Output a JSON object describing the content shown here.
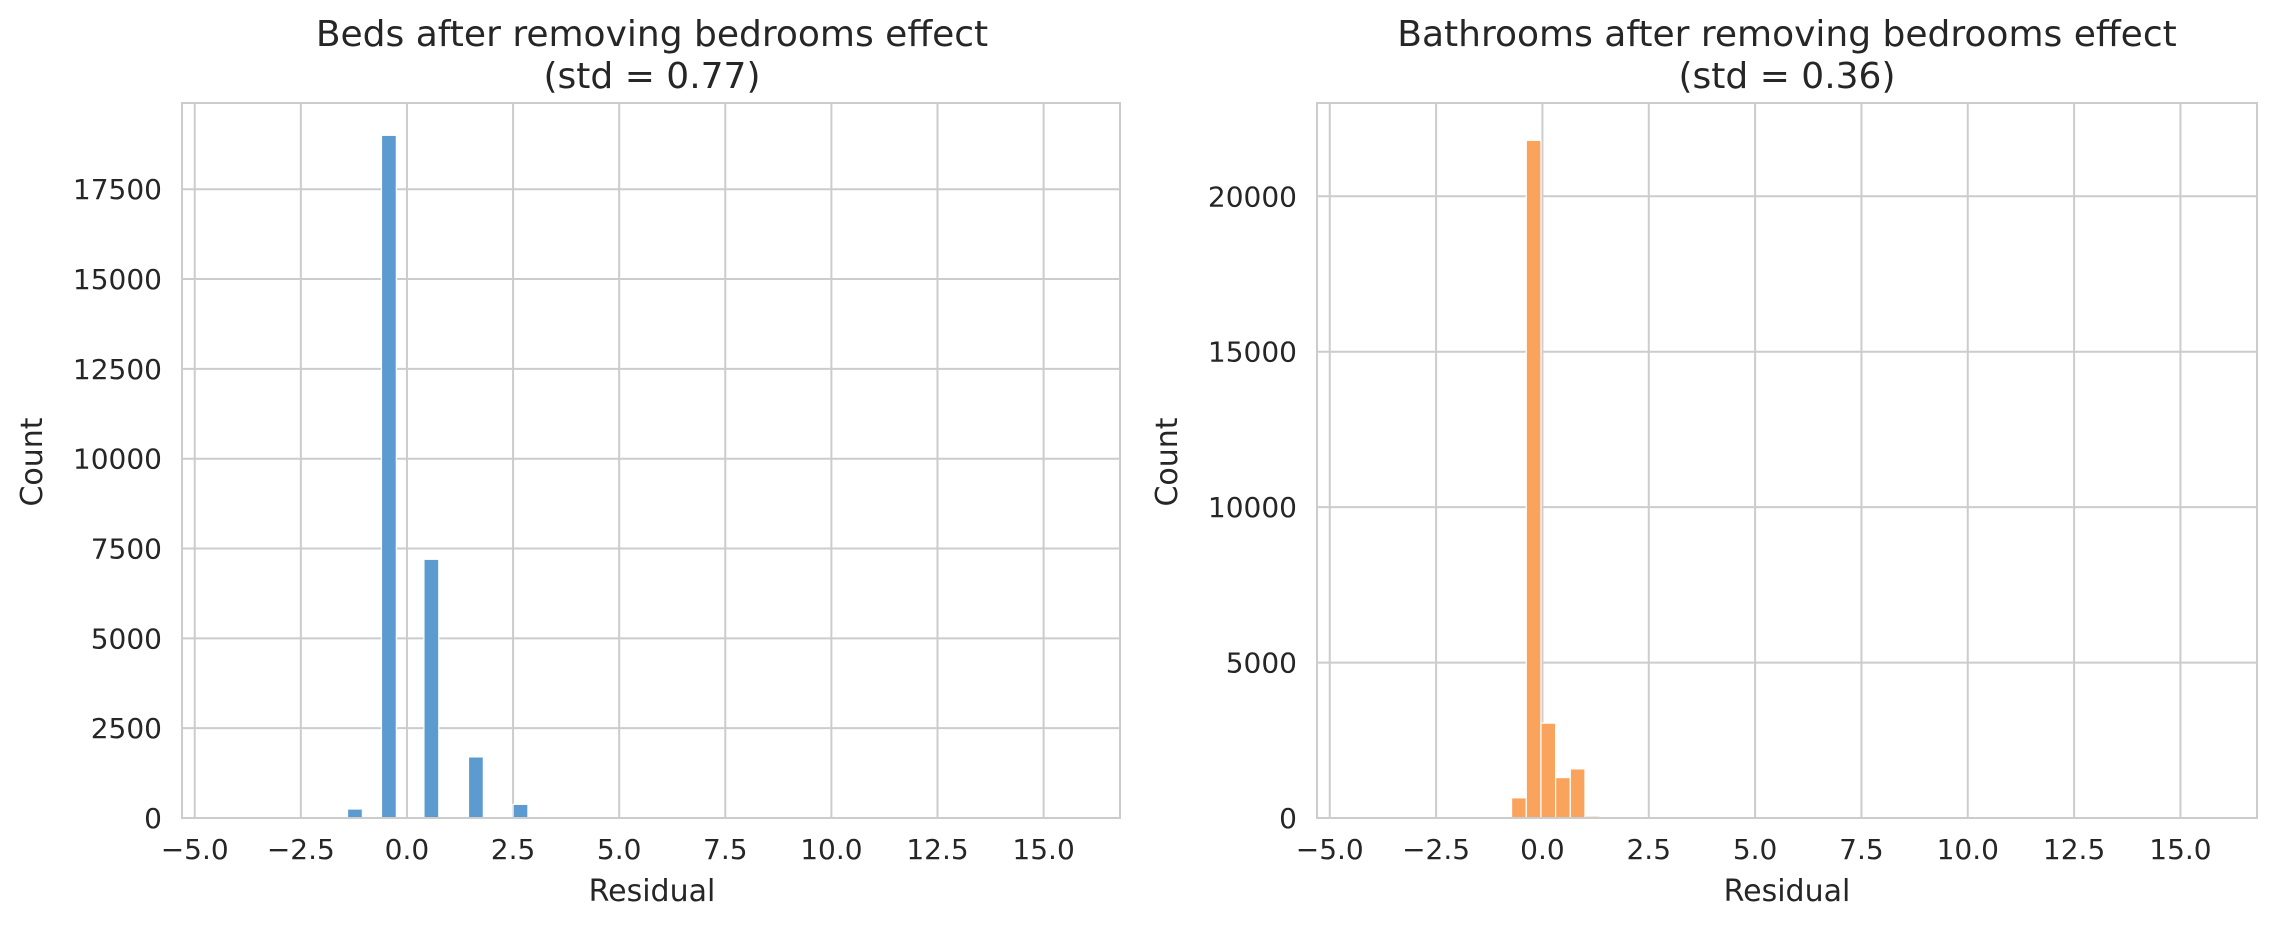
{
  "chart_data": [
    {
      "type": "bar",
      "title_line1": "Beds after removing bedrooms effect",
      "title_line2": "(std = 0.77)",
      "xlabel": "Residual",
      "ylabel": "Count",
      "xlim": [
        -5.3,
        16.8
      ],
      "ylim": [
        0,
        19900
      ],
      "xticks": [
        -5.0,
        -2.5,
        0.0,
        2.5,
        5.0,
        7.5,
        10.0,
        12.5,
        15.0
      ],
      "xtick_labels": [
        "−5.0",
        "−2.5",
        "0.0",
        "2.5",
        "5.0",
        "7.5",
        "10.0",
        "12.5",
        "15.0"
      ],
      "yticks": [
        0,
        2500,
        5000,
        7500,
        10000,
        12500,
        15000,
        17500
      ],
      "ytick_labels": [
        "0",
        "2500",
        "5000",
        "7500",
        "10000",
        "12500",
        "15000",
        "17500"
      ],
      "grid": true,
      "color": "#5b9bd0",
      "bin_width": 0.35,
      "bins": [
        {
          "x0": -1.4,
          "value": 250
        },
        {
          "x0": -0.6,
          "value": 19000
        },
        {
          "x0": 0.4,
          "value": 7200
        },
        {
          "x0": 1.45,
          "value": 1700
        },
        {
          "x0": 2.5,
          "value": 380
        },
        {
          "x0": 3.55,
          "value": 40
        }
      ]
    },
    {
      "type": "bar",
      "title_line1": "Bathrooms after removing bedrooms effect",
      "title_line2": "(std = 0.36)",
      "xlabel": "Residual",
      "ylabel": "Count",
      "xlim": [
        -5.3,
        16.8
      ],
      "ylim": [
        0,
        23000
      ],
      "xticks": [
        -5.0,
        -2.5,
        0.0,
        2.5,
        5.0,
        7.5,
        10.0,
        12.5,
        15.0
      ],
      "xtick_labels": [
        "−5.0",
        "−2.5",
        "0.0",
        "2.5",
        "5.0",
        "7.5",
        "10.0",
        "12.5",
        "15.0"
      ],
      "yticks": [
        0,
        5000,
        10000,
        15000,
        20000
      ],
      "ytick_labels": [
        "0",
        "5000",
        "10000",
        "15000",
        "20000"
      ],
      "grid": true,
      "color": "#f9a35c",
      "bin_width": 0.345,
      "bins": [
        {
          "x0": -0.725,
          "value": 650
        },
        {
          "x0": -0.38,
          "value": 21800
        },
        {
          "x0": -0.035,
          "value": 3050
        },
        {
          "x0": 0.31,
          "value": 1300
        },
        {
          "x0": 0.655,
          "value": 1580
        },
        {
          "x0": 1.0,
          "value": 60
        }
      ]
    }
  ]
}
